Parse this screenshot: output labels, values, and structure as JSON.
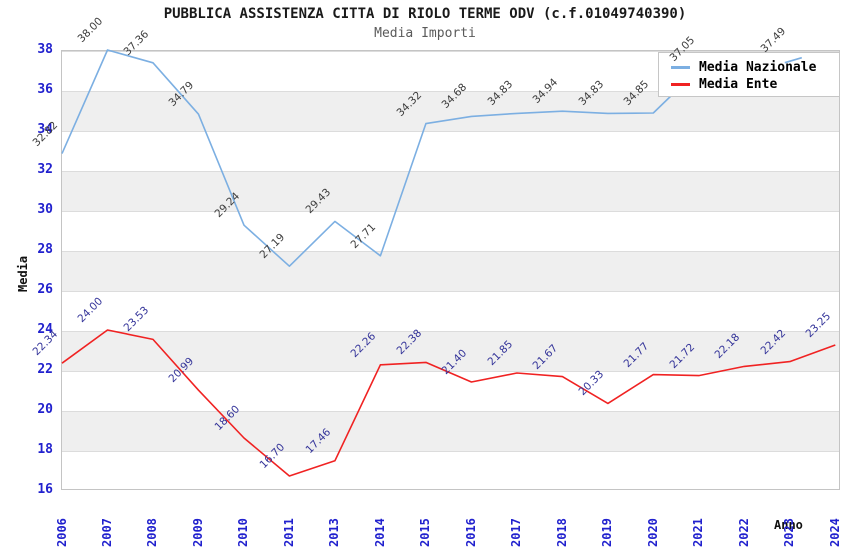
{
  "page": {
    "background": "#ffffff"
  },
  "chart_data": {
    "type": "line",
    "title": "PUBBLICA ASSISTENZA CITTA DI RIOLO TERME ODV (c.f.01049740390)",
    "subtitle": "Media Importi",
    "xlabel": "Anno",
    "ylabel": "Media",
    "ylim": [
      16,
      38
    ],
    "ytick_step": 2,
    "grid": "horizontal gridlines with alternating gray bands",
    "band_color": "#efefef",
    "gridline_color": "#dcdcdc",
    "axis_tick_color": "#2121ce",
    "legend_position": "top-right overlay box",
    "categories": [
      "2006",
      "2007",
      "2008",
      "2009",
      "2010",
      "2011",
      "2013",
      "2014",
      "2015",
      "2016",
      "2017",
      "2018",
      "2019",
      "2020",
      "2021",
      "2022",
      "2023",
      "2024"
    ],
    "series": [
      {
        "name": "Media Nazionale",
        "color": "#7cafe2",
        "label_color": "#3c3c3c",
        "values": [
          32.82,
          38.0,
          37.36,
          34.79,
          29.24,
          27.19,
          29.43,
          27.71,
          34.32,
          34.68,
          34.83,
          34.94,
          34.83,
          34.85,
          37.05,
          37.46,
          37.49,
          37.5
        ],
        "labels": [
          "32.82",
          "38.00",
          "37.36",
          "34.79",
          "29.24",
          "27.19",
          "29.43",
          "27.71",
          "34.32",
          "34.68",
          "34.83",
          "34.94",
          "34.83",
          "34.85",
          "37.05",
          "",
          "37.49",
          ""
        ]
      },
      {
        "name": "Media Ente",
        "color": "#f02222",
        "label_color": "#333399",
        "values": [
          22.34,
          24.0,
          23.53,
          20.99,
          18.6,
          16.7,
          17.46,
          22.26,
          22.38,
          21.4,
          21.85,
          21.67,
          20.33,
          21.77,
          21.72,
          22.18,
          22.42,
          23.25
        ],
        "labels": [
          "22.34",
          "24.00",
          "23.53",
          "20.99",
          "18.60",
          "16.70",
          "17.46",
          "22.26",
          "22.38",
          "21.40",
          "21.85",
          "21.67",
          "20.33",
          "21.77",
          "21.72",
          "22.18",
          "22.42",
          "23.25"
        ]
      }
    ]
  }
}
